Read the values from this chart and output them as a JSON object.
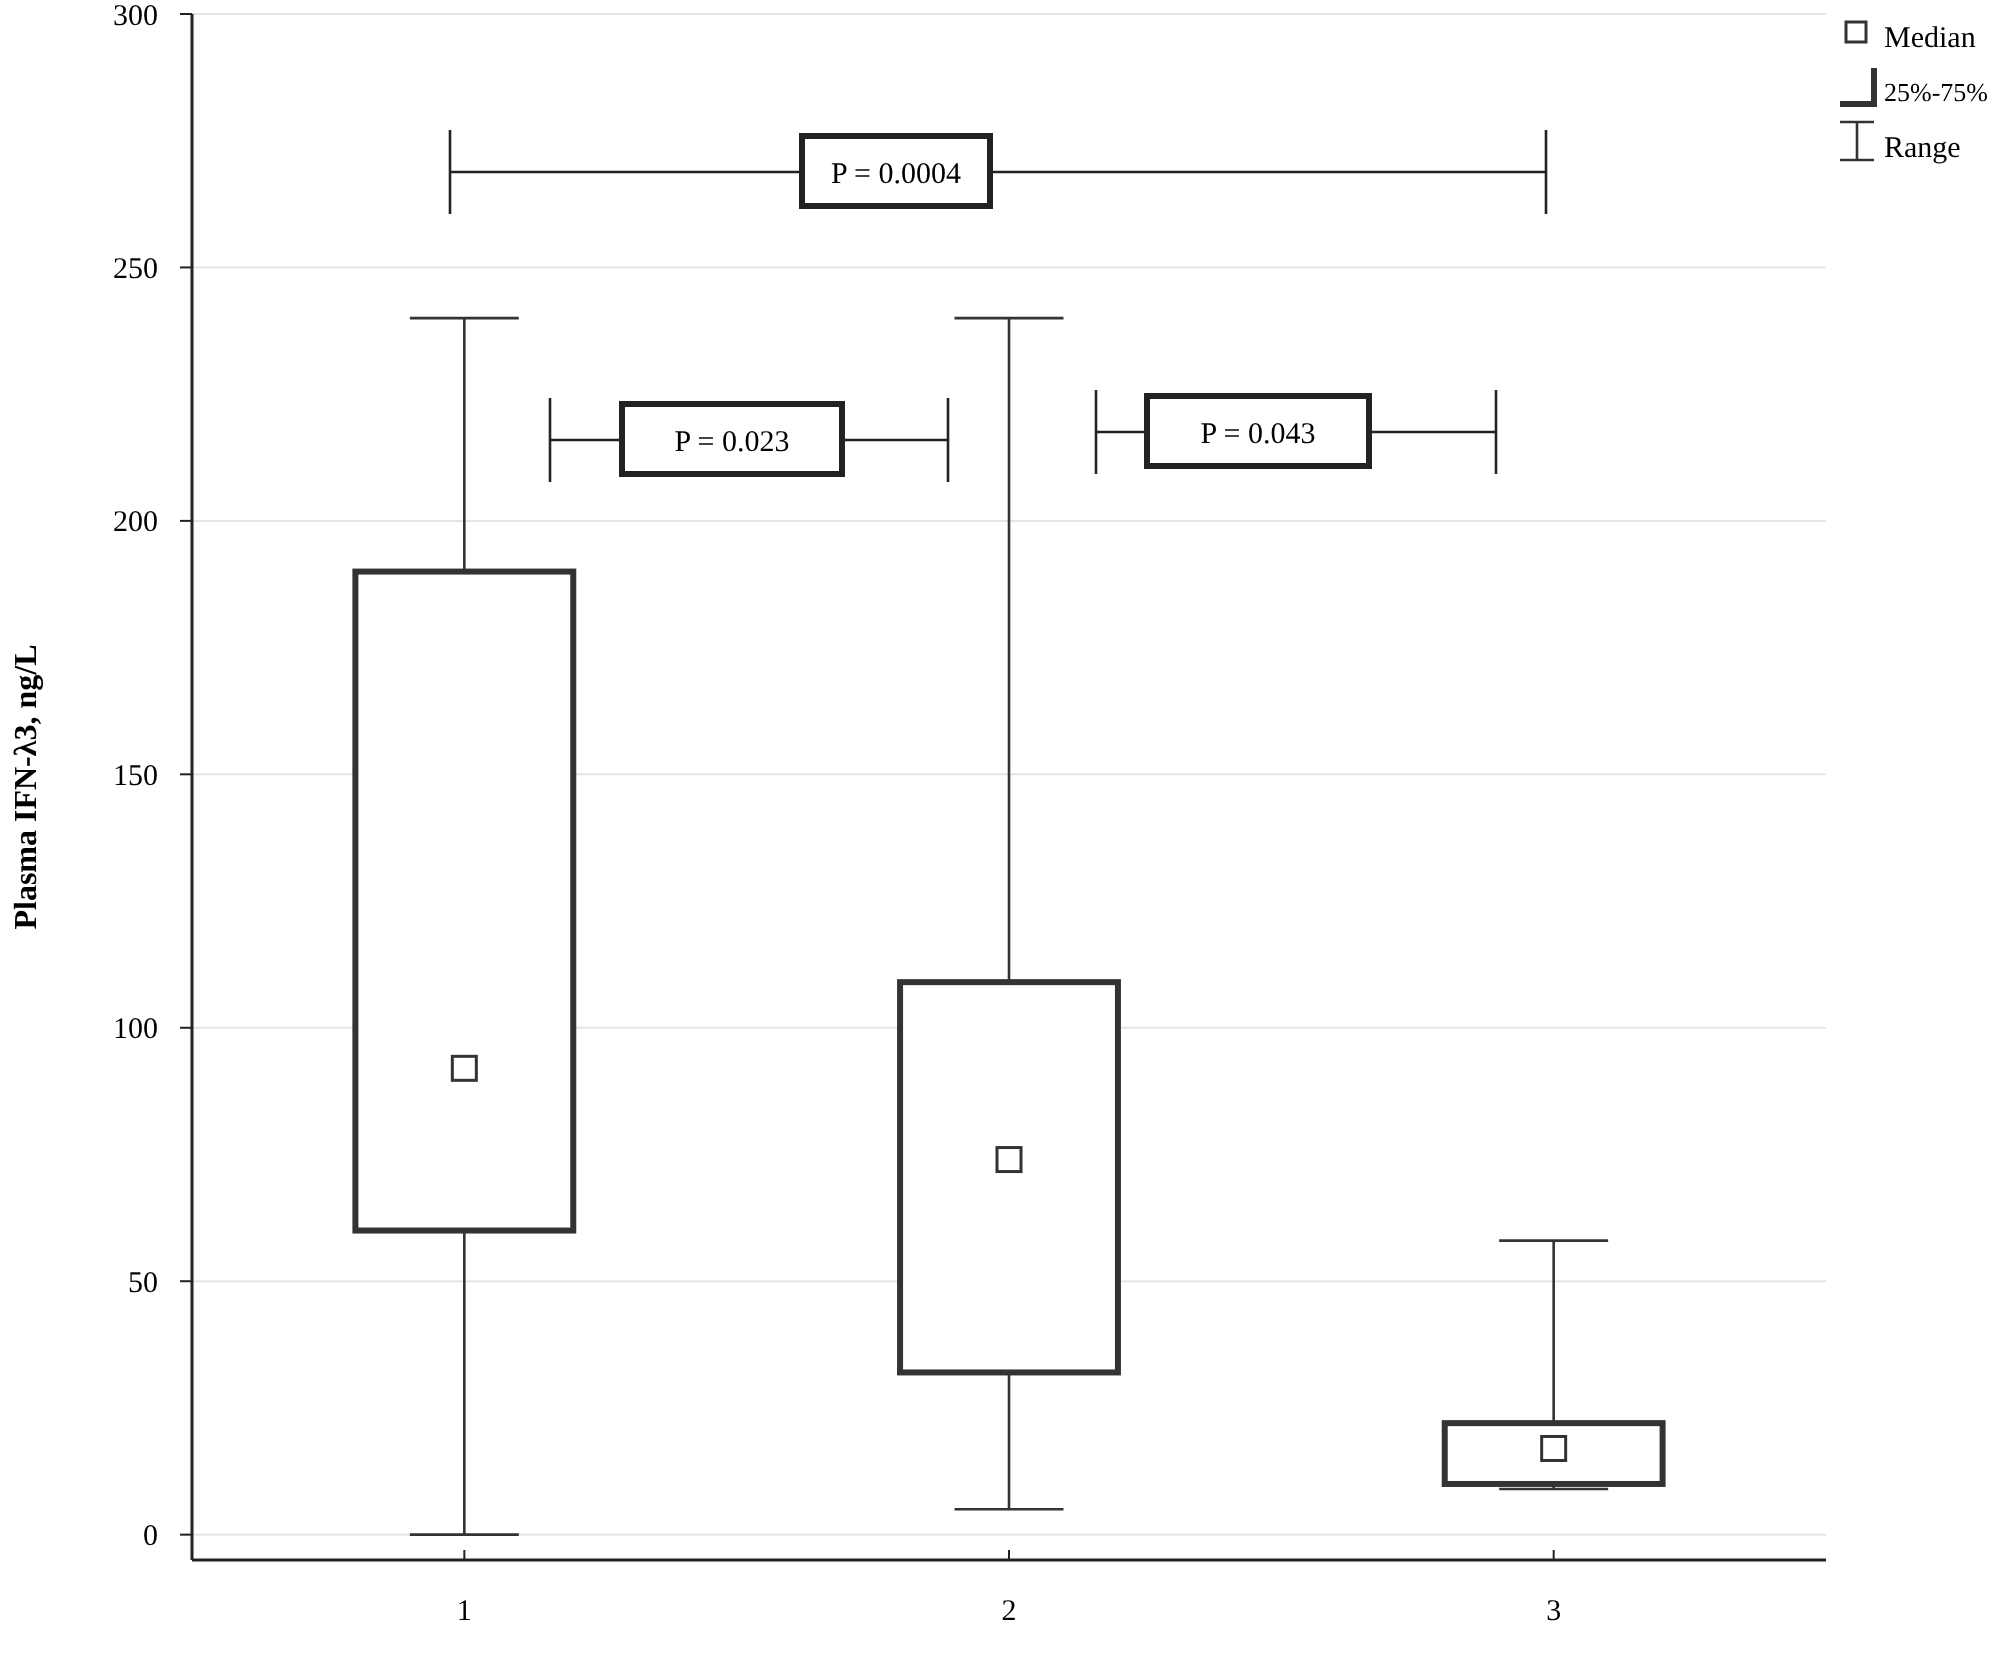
{
  "chart_data": {
    "type": "box",
    "ylabel": "Plasma IFN-λ3, ng/L",
    "categories": [
      "1",
      "2",
      "3"
    ],
    "boxes": [
      {
        "low": 0,
        "q1": 60,
        "median": 92,
        "q3": 190,
        "high": 240
      },
      {
        "low": 5,
        "q1": 32,
        "median": 74,
        "q3": 109,
        "high": 240
      },
      {
        "low": 9,
        "q1": 10,
        "median": 17,
        "q3": 22,
        "high": 58
      }
    ],
    "ylim": [
      -5,
      300
    ],
    "yticks": [
      0,
      50,
      100,
      150,
      200,
      250,
      300
    ],
    "grid": "y",
    "marker": "square",
    "color": "#333333",
    "annotations": [
      "P = 0.0004",
      "P = 0.023",
      "P = 0.043",
      "Median",
      "25%-75%",
      "Range"
    ]
  }
}
